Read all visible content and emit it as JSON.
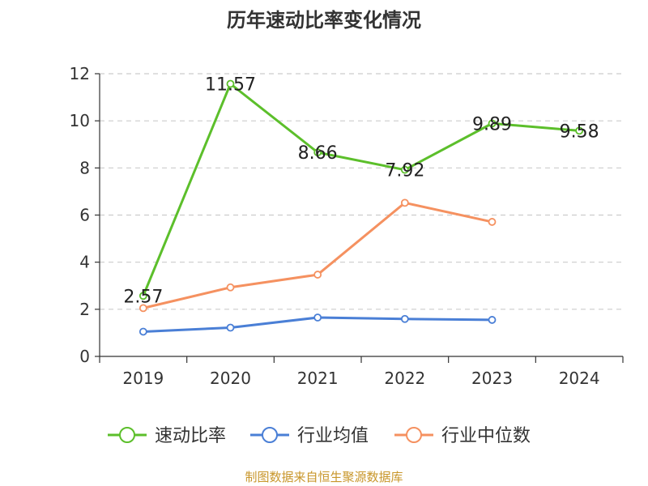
{
  "chart_data": {
    "type": "line",
    "title": "历年速动比率变化情况",
    "x": [
      "2019",
      "2020",
      "2021",
      "2022",
      "2023",
      "2024"
    ],
    "ylim": [
      0,
      12
    ],
    "yticks": [
      0,
      2,
      4,
      6,
      8,
      10,
      12
    ],
    "grid": true,
    "legend_position": "bottom",
    "series": [
      {
        "name": "速动比率",
        "color": "#5cbf2b",
        "values": [
          2.57,
          11.57,
          8.66,
          7.92,
          9.89,
          9.58
        ],
        "labels": [
          "2.57",
          "11.57",
          "8.66",
          "7.92",
          "9.89",
          "9.58"
        ]
      },
      {
        "name": "行业均值",
        "color": "#4a7fd6",
        "values": [
          1.05,
          1.22,
          1.65,
          1.59,
          1.55,
          null
        ]
      },
      {
        "name": "行业中位数",
        "color": "#f59160",
        "values": [
          2.05,
          2.93,
          3.47,
          6.52,
          5.71,
          null
        ]
      }
    ]
  },
  "footer": {
    "source": "制图数据来自恒生聚源数据库"
  }
}
